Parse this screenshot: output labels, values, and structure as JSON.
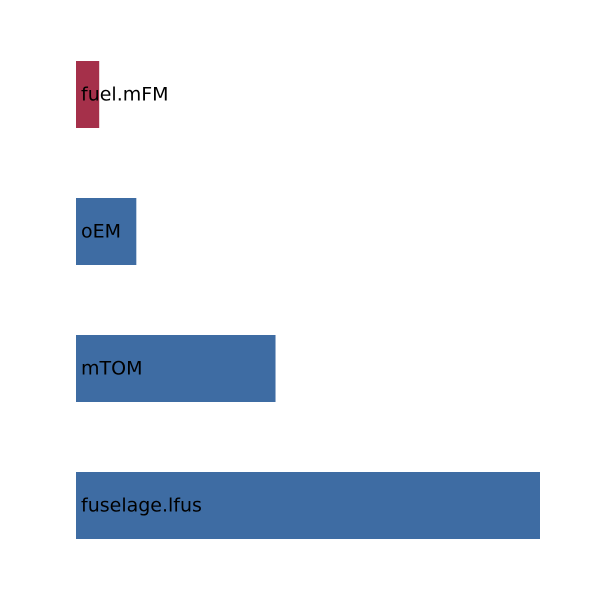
{
  "chart_data": {
    "type": "bar",
    "orientation": "horizontal",
    "title": "",
    "xlabel": "",
    "ylabel": "",
    "grid": false,
    "categories": [
      "fuel.mFM",
      "oEM",
      "mTOM",
      "fuselage.lfus"
    ],
    "values": [
      0.05,
      0.13,
      0.43,
      1.0
    ],
    "colors": [
      "#a5304a",
      "#3e6ca3",
      "#3e6ca3",
      "#3e6ca3"
    ],
    "xlim": [
      0,
      1
    ]
  }
}
